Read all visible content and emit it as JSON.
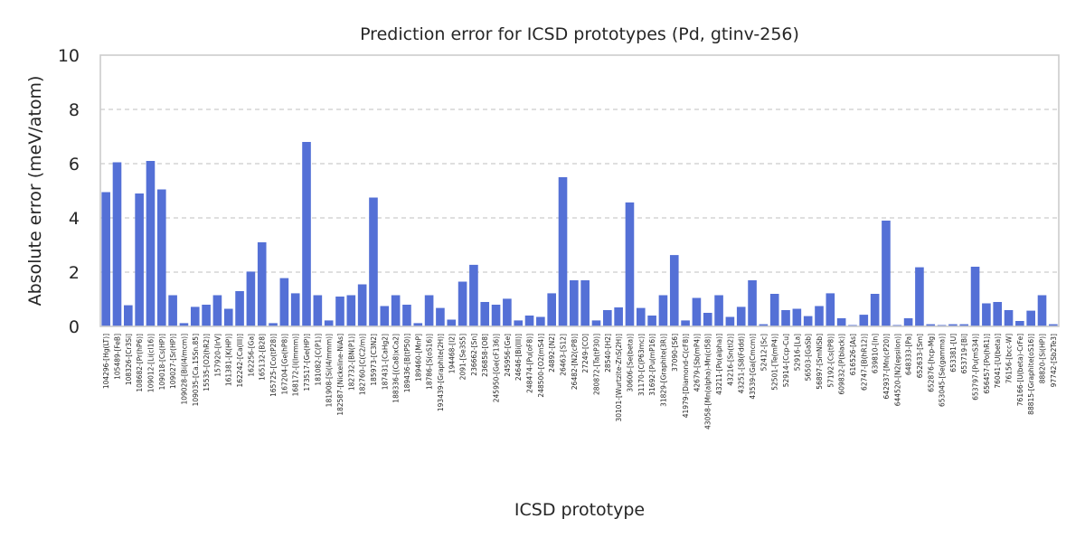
{
  "chart_data": {
    "type": "bar",
    "title": "Prediction error for ICSD prototypes (Pd, gtinv-256)",
    "xlabel": "ICSD prototype",
    "ylabel": "Absolute error (meV/atom)",
    "ylim": [
      0,
      10
    ],
    "yticks": [
      "0",
      "2",
      "4",
      "6",
      "8",
      "10"
    ],
    "grid": "y-dashed",
    "bar_color": "#5470d6",
    "categories": [
      "104296-[Hg(LT)]",
      "105489-[FeB]",
      "108326-[Cr3Si]",
      "108682-[Pr(hP6)]",
      "109012-[Li(cI16)]",
      "109018-[Cs(HP)]",
      "109027-[Sr(HP)]",
      "109028-[Bi(I4/mcm)]",
      "109035-[Ca.15Sn.85]",
      "15535-[O2(hR2)]",
      "157920-[IrV]",
      "161381-[K(HP)]",
      "162242-[Ca(III)]",
      "162256-[Ga]",
      "165132-[B28]",
      "165725-[Co(tP28)]",
      "167204-[Ge(hP8)]",
      "168172-[I(Immm)]",
      "173517-[Ge(HP)]",
      "181082-[C(P1)]",
      "181908-[Si(I4/mmm)]",
      "182587-[Nickeline-NiAs]",
      "182732-[BN(P1)]",
      "182760-[C(C2/m)]",
      "185973-[C3N2]",
      "187431-[CaHg2]",
      "188336-[(Ca8)xCa2]",
      "189436-[B(tP50)]",
      "189460-[MnP]",
      "18786-[S(oS16)]",
      "193439-[Graphite(2H)]",
      "194468-[I2]",
      "2091-[Se3S5]",
      "236662-[Sn]",
      "236858-[O8]",
      "245950-[Ge(cF136)]",
      "245956-[Ge]",
      "24646-[Bi(III)]",
      "248474-[Pu(oF8)]",
      "248500-[O2(mS4)]",
      "24892-[N2]",
      "26463-[S12]",
      "26482-[N2(cP8)]",
      "27249-[CO]",
      "280872-[Ta(tP30)]",
      "28540-[H2]",
      "30101-[Wurtzite-ZnS(2H)]",
      "30606-[Se(beta)]",
      "31170-[C(P63mc)]",
      "31692-[Pu(mP16)]",
      "31829-[Graphite(3R)]",
      "37090-[S6]",
      "41979-[Diamond-C(cF8)]",
      "42679-[Sb(mP4)]",
      "43058-[Mn(alpha)-Mn(cI58)]",
      "43211-[Po(alpha)]",
      "43216-[Sn(tI2)]",
      "43251-[S8(Fddd)]",
      "43539-[Ga(Cmcm)]",
      "52412-[Sc]",
      "52501-[Te(mP4)]",
      "52914-[Ccp-Cu]",
      "52916-[La]",
      "56503-[GaSb]",
      "56897-[SmNiSb]",
      "57192-[Cs(tP8)]",
      "609832-[P(black)]",
      "616526-[As]",
      "62747-[B(hR12)]",
      "639810-[In]",
      "642937-[Mn(cP20)]",
      "644520-[N2(epsilon)]",
      "648333-[Pa]",
      "652633-[Sm]",
      "652876-[hcp-Mg]",
      "653045-[Se(gamma)]",
      "653381-[U]",
      "653719-[Bi]",
      "653797-[Pu(mS34)]",
      "656457-[Po(hR1)]",
      "76041-[U(beta)]",
      "76156-[bcc-W]",
      "76166-[U(beta)-CrFe]",
      "88815-[Graphite(oS16)]",
      "88820-[Si(HP)]",
      "97742-[Sb2Te3]"
    ],
    "values": [
      4.95,
      6.05,
      0.78,
      4.9,
      6.1,
      5.05,
      1.15,
      0.12,
      0.72,
      0.8,
      1.15,
      0.65,
      1.3,
      2.02,
      3.1,
      0.12,
      1.78,
      1.22,
      6.8,
      1.15,
      0.22,
      1.1,
      1.15,
      1.55,
      4.75,
      0.75,
      1.15,
      0.8,
      0.12,
      1.15,
      0.68,
      0.25,
      1.65,
      2.27,
      0.9,
      0.8,
      1.02,
      0.22,
      0.4,
      0.35,
      1.22,
      5.5,
      1.7,
      1.7,
      0.22,
      0.6,
      0.7,
      4.57,
      0.68,
      0.4,
      1.15,
      2.63,
      0.22,
      1.05,
      0.5,
      1.15,
      0.35,
      0.72,
      1.7,
      0.08,
      1.2,
      0.6,
      0.65,
      0.38,
      0.75,
      1.22,
      0.3,
      0.05,
      0.43,
      1.2,
      3.9,
      0.05,
      0.3,
      2.18,
      0.08,
      0.05,
      0.08,
      0.08,
      2.2,
      0.85,
      0.9,
      0.6,
      0.2,
      0.58,
      1.15,
      0.08
    ]
  }
}
